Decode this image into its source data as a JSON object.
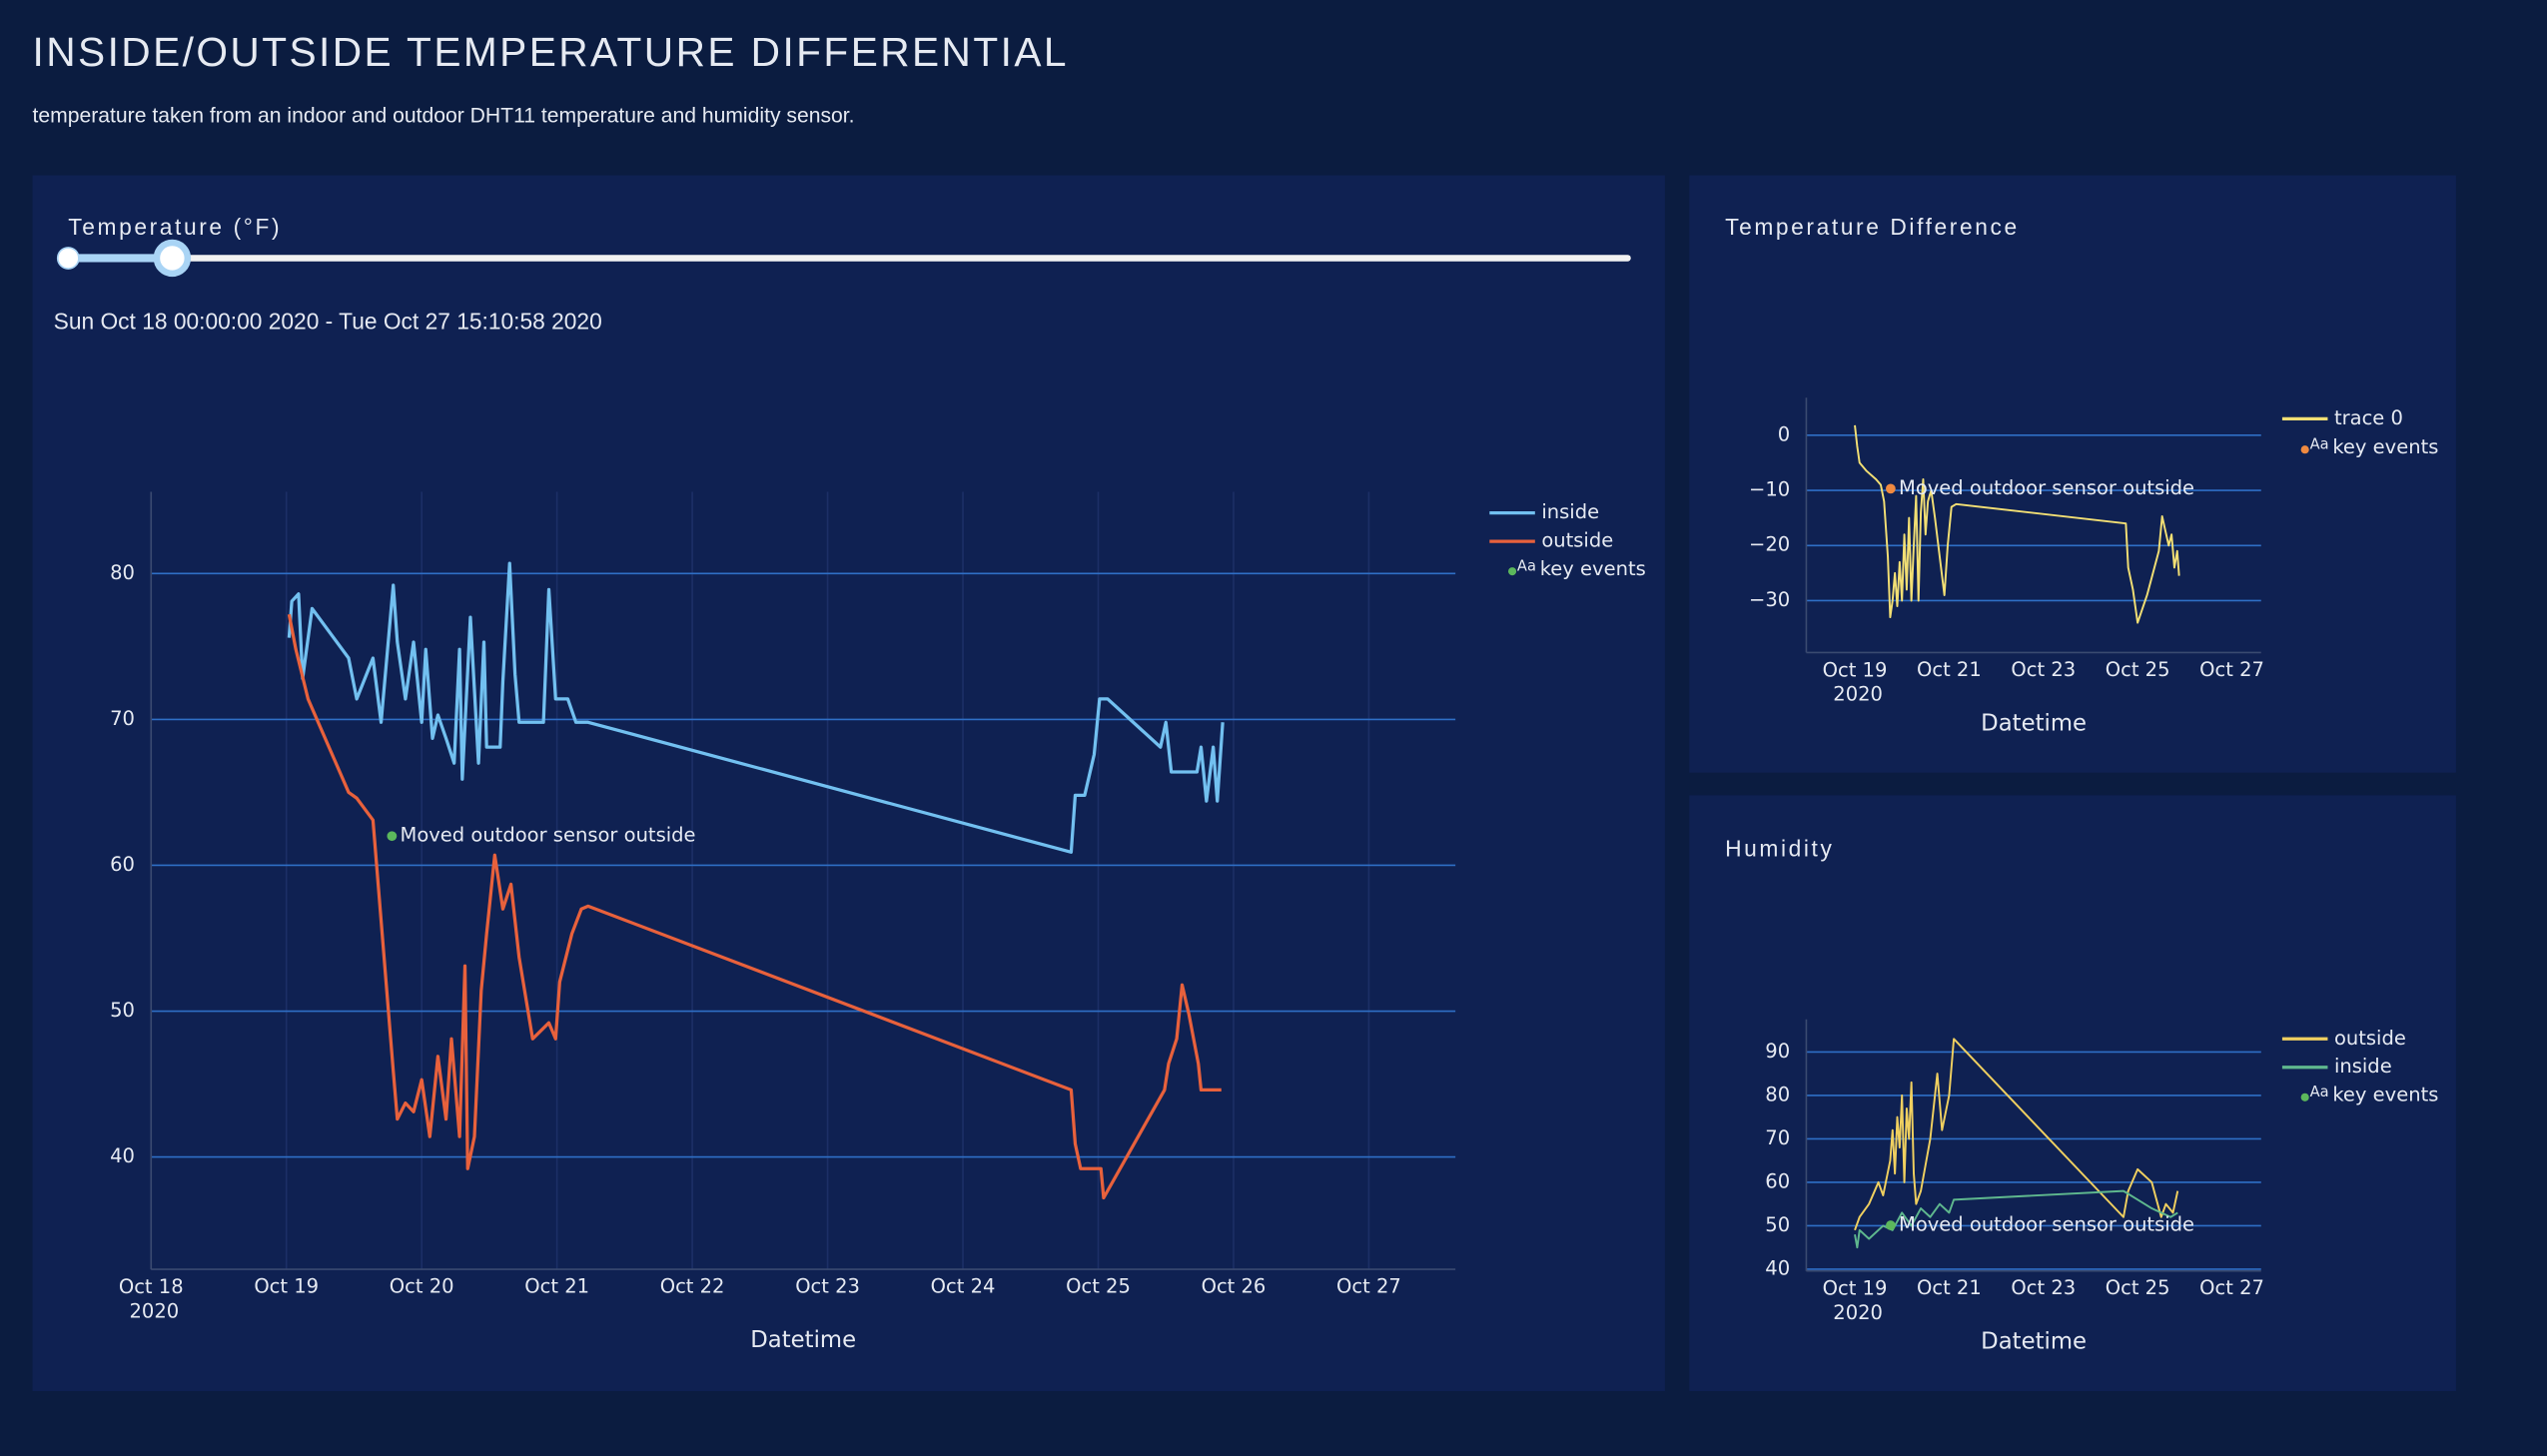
{
  "header": {
    "title": "INSIDE/OUTSIDE TEMPERATURE DIFFERENTIAL",
    "subtitle": "temperature taken from an indoor and outdoor DHT11 temperature and humidity sensor."
  },
  "chart_data": [
    {
      "type": "line",
      "title": "Temperature (°F)",
      "subtitle": "Sun Oct 18 00:00:00 2020 - Tue Oct 27 15:10:58 2020",
      "x_label": "Datetime",
      "grid": true,
      "xgrid": true,
      "legend": "right",
      "xlim": [
        18,
        27.64
      ],
      "ylim": [
        32.3,
        85.6
      ],
      "xticks": [
        {
          "value": 18,
          "label": "Oct 18\n2020"
        },
        {
          "value": 19,
          "label": "Oct 19"
        },
        {
          "value": 20,
          "label": "Oct 20"
        },
        {
          "value": 21,
          "label": "Oct 21"
        },
        {
          "value": 22,
          "label": "Oct 22"
        },
        {
          "value": 23,
          "label": "Oct 23"
        },
        {
          "value": 24,
          "label": "Oct 24"
        },
        {
          "value": 25,
          "label": "Oct 25"
        },
        {
          "value": 26,
          "label": "Oct 26"
        },
        {
          "value": 27,
          "label": "Oct 27"
        }
      ],
      "yticks": [
        40,
        50,
        60,
        70,
        80
      ],
      "series": [
        {
          "name": "inside",
          "color": "#72c0f0",
          "x": [
            19.02,
            19.04,
            19.09,
            19.12,
            19.19,
            19.46,
            19.52,
            19.64,
            19.7,
            19.79,
            19.82,
            19.88,
            19.94,
            20.0,
            20.03,
            20.08,
            20.12,
            20.18,
            20.24,
            20.28,
            20.3,
            20.36,
            20.42,
            20.46,
            20.48,
            20.58,
            20.6,
            20.65,
            20.69,
            20.72,
            20.9,
            20.94,
            20.99,
            21.08,
            21.14,
            21.23,
            24.8,
            24.83,
            24.9,
            24.97,
            25.01,
            25.07,
            25.46,
            25.5,
            25.54,
            25.73,
            25.76,
            25.8,
            25.85,
            25.88,
            25.92
          ],
          "values": [
            75.6,
            78.1,
            78.6,
            72.8,
            77.6,
            74.2,
            71.4,
            74.2,
            69.8,
            79.2,
            75.3,
            71.4,
            75.3,
            69.8,
            74.8,
            68.7,
            70.3,
            68.7,
            67.0,
            74.8,
            65.9,
            77.0,
            67.0,
            75.3,
            68.1,
            68.1,
            72.6,
            80.7,
            73.1,
            69.8,
            69.8,
            78.9,
            71.4,
            71.4,
            69.8,
            69.8,
            60.9,
            64.8,
            64.8,
            67.6,
            71.4,
            71.4,
            68.1,
            69.8,
            66.4,
            66.4,
            68.1,
            64.4,
            68.1,
            64.4,
            69.8
          ]
        },
        {
          "name": "outside",
          "color": "#e8613c",
          "x": [
            19.02,
            19.07,
            19.16,
            19.46,
            19.52,
            19.64,
            19.79,
            19.82,
            19.88,
            19.94,
            20.0,
            20.06,
            20.12,
            20.18,
            20.22,
            20.28,
            20.32,
            20.34,
            20.39,
            20.44,
            20.48,
            20.54,
            20.6,
            20.66,
            20.72,
            20.82,
            20.94,
            20.99,
            21.02,
            21.11,
            21.18,
            21.23,
            24.8,
            24.83,
            24.87,
            25.02,
            25.04,
            25.49,
            25.52,
            25.58,
            25.62,
            25.67,
            25.74,
            25.76,
            25.91
          ],
          "values": [
            77.2,
            74.8,
            71.4,
            65.0,
            64.6,
            63.1,
            45.9,
            42.6,
            43.7,
            43.1,
            45.3,
            41.4,
            46.9,
            42.6,
            48.1,
            41.4,
            53.1,
            39.2,
            41.4,
            51.4,
            55.3,
            60.7,
            57.0,
            58.7,
            53.7,
            48.1,
            49.2,
            48.1,
            52.0,
            55.3,
            57.0,
            57.2,
            44.6,
            40.9,
            39.2,
            39.2,
            37.2,
            44.6,
            46.4,
            48.1,
            51.8,
            49.8,
            46.4,
            44.6,
            44.6
          ]
        },
        {
          "name": "key events",
          "type": "annotation",
          "color": "#5cb85c",
          "symbol": "Aa",
          "x": [
            19.78
          ],
          "values": [
            62
          ],
          "labels": [
            "Moved outdoor sensor outside"
          ]
        }
      ]
    },
    {
      "type": "line",
      "title": "Temperature Difference",
      "x_label": "Datetime",
      "grid": true,
      "xgrid": false,
      "legend": "right",
      "xlim": [
        17.97,
        27.62
      ],
      "ylim": [
        -39.4,
        6.8
      ],
      "xticks": [
        {
          "value": 19,
          "label": "Oct 19\n2020"
        },
        {
          "value": 21,
          "label": "Oct 21"
        },
        {
          "value": 23,
          "label": "Oct 23"
        },
        {
          "value": 25,
          "label": "Oct 25"
        },
        {
          "value": 27,
          "label": "Oct 27"
        }
      ],
      "yticks": [
        {
          "value": 0,
          "label": "0"
        },
        {
          "value": -10,
          "label": "−10"
        },
        {
          "value": -20,
          "label": "−20"
        },
        {
          "value": -30,
          "label": "−30"
        }
      ],
      "series": [
        {
          "name": "trace 0",
          "color": "#f2df74",
          "x": [
            19.0,
            19.05,
            19.1,
            19.25,
            19.45,
            19.55,
            19.62,
            19.7,
            19.75,
            19.8,
            19.85,
            19.9,
            19.95,
            20.0,
            20.05,
            20.1,
            20.15,
            20.2,
            20.25,
            20.3,
            20.35,
            20.4,
            20.45,
            20.5,
            20.55,
            20.62,
            20.7,
            20.8,
            20.9,
            20.97,
            21.05,
            21.15,
            24.75,
            24.8,
            24.9,
            25.0,
            25.2,
            25.45,
            25.52,
            25.58,
            25.66,
            25.72,
            25.78,
            25.84,
            25.88
          ],
          "values": [
            1.8,
            -2,
            -5,
            -6.5,
            -8,
            -9,
            -12,
            -22,
            -33,
            -30,
            -25,
            -31,
            -23,
            -30,
            -18,
            -28,
            -15,
            -30,
            -20,
            -11,
            -30,
            -14,
            -8,
            -18,
            -12,
            -10,
            -15,
            -22,
            -29,
            -20,
            -13,
            -12.5,
            -16,
            -24,
            -28,
            -34,
            -29,
            -21,
            -14.7,
            -17,
            -20,
            -18,
            -24,
            -21,
            -25.5
          ]
        },
        {
          "name": "key events",
          "type": "annotation",
          "color": "#f08a40",
          "symbol": "Aa",
          "x": [
            19.76
          ],
          "values": [
            -9.7
          ],
          "labels": [
            "Moved outdoor sensor outside"
          ]
        }
      ]
    },
    {
      "type": "line",
      "title": "Humidity",
      "x_label": "Datetime",
      "grid": true,
      "xgrid": false,
      "legend": "right",
      "xlim": [
        17.97,
        27.62
      ],
      "ylim": [
        39.6,
        97.5
      ],
      "xticks": [
        {
          "value": 19,
          "label": "Oct 19\n2020"
        },
        {
          "value": 21,
          "label": "Oct 21"
        },
        {
          "value": 23,
          "label": "Oct 23"
        },
        {
          "value": 25,
          "label": "Oct 25"
        },
        {
          "value": 27,
          "label": "Oct 27"
        }
      ],
      "yticks": [
        40,
        50,
        60,
        70,
        80,
        90
      ],
      "series": [
        {
          "name": "outside",
          "color": "#f0d060",
          "x": [
            19.0,
            19.1,
            19.3,
            19.5,
            19.6,
            19.75,
            19.8,
            19.85,
            19.9,
            19.95,
            20.0,
            20.05,
            20.1,
            20.15,
            20.2,
            20.25,
            20.3,
            20.4,
            20.6,
            20.75,
            20.85,
            21.0,
            21.1,
            24.7,
            24.8,
            25.0,
            25.3,
            25.5,
            25.6,
            25.75,
            25.85
          ],
          "values": [
            49,
            52,
            55,
            60,
            57,
            65,
            72,
            62,
            75,
            68,
            80,
            60,
            77,
            70,
            83,
            62,
            55,
            58,
            70,
            85,
            72,
            80,
            93,
            52,
            58,
            63,
            60,
            52,
            55,
            53,
            58
          ]
        },
        {
          "name": "inside",
          "color": "#5fb88e",
          "x": [
            19.0,
            19.05,
            19.1,
            19.3,
            19.6,
            19.8,
            20.0,
            20.2,
            20.4,
            20.6,
            20.8,
            21.0,
            21.1,
            24.7,
            25.0,
            25.3,
            25.5,
            25.7,
            25.85
          ],
          "values": [
            48,
            45,
            49,
            47,
            50,
            49,
            53,
            50,
            54,
            52,
            55,
            53,
            56,
            58,
            56,
            54,
            53,
            52,
            53
          ]
        },
        {
          "name": "key events",
          "type": "annotation",
          "color": "#5cb85c",
          "symbol": "Aa",
          "x": [
            19.76
          ],
          "values": [
            50.1
          ],
          "labels": [
            "Moved outdoor sensor outside"
          ]
        }
      ]
    }
  ]
}
